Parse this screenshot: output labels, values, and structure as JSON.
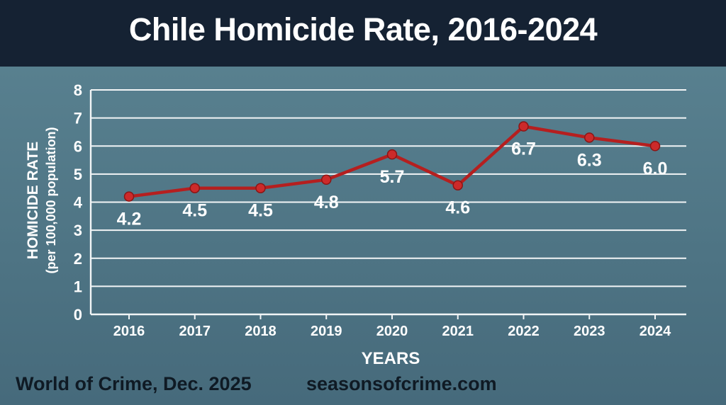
{
  "title": "Chile Homicide Rate, 2016-2024",
  "chart_data": {
    "type": "line",
    "title": "Chile Homicide Rate, 2016-2024",
    "x": [
      "2016",
      "2017",
      "2018",
      "2019",
      "2020",
      "2021",
      "2022",
      "2023",
      "2024"
    ],
    "series": [
      {
        "values": [
          4.2,
          4.5,
          4.5,
          4.8,
          5.7,
          4.6,
          6.7,
          6.3,
          6.0
        ],
        "labels": [
          "4.2",
          "4.5",
          "4.5",
          "4.8",
          "5.7",
          "4.6",
          "6.7",
          "6.3",
          "6.0"
        ]
      }
    ],
    "xlabel": "YEARS",
    "ylabel": "HOMICIDE RATE",
    "ylabel_sub": "(per 100,000 population)",
    "ylim": [
      0,
      8
    ],
    "yticks": [
      "0",
      "1",
      "2",
      "3",
      "4",
      "5",
      "6",
      "7",
      "8"
    ],
    "grid": true,
    "line_color": "#b51f1f",
    "marker_color": "#cc2a2a",
    "grid_color": "#f2f5f6"
  },
  "footer": {
    "left": "World of Crime, Dec. 2025",
    "right": "seasonsofcrime.com"
  }
}
